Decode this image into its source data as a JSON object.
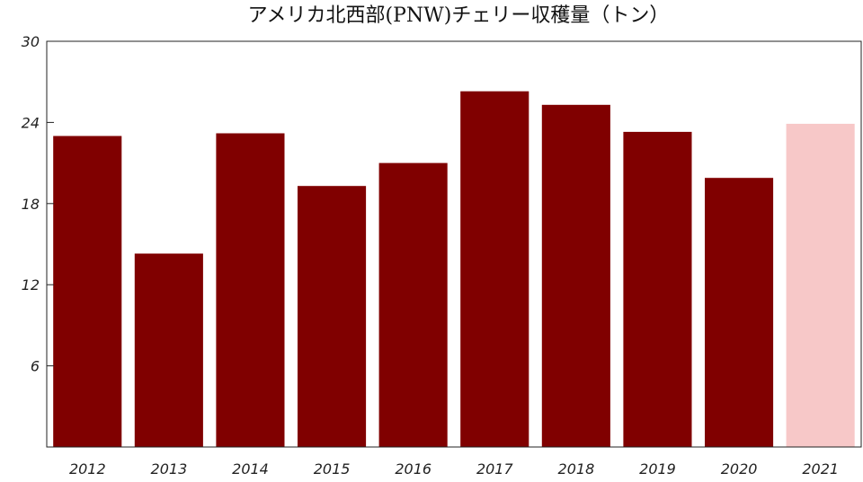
{
  "chart_data": {
    "type": "bar",
    "title": "アメリカ北西部(PNW)チェリー収穫量（トン）",
    "xlabel": "",
    "ylabel": "",
    "categories": [
      "2012",
      "2013",
      "2014",
      "2015",
      "2016",
      "2017",
      "2018",
      "2019",
      "2020",
      "2021"
    ],
    "values": [
      23.0,
      14.3,
      23.2,
      19.3,
      21.0,
      26.3,
      25.3,
      23.3,
      19.9,
      23.9
    ],
    "ylim": [
      0,
      30
    ],
    "yticks": [
      6,
      12,
      18,
      24,
      30
    ],
    "grid": false,
    "colors": {
      "bar": "#800000",
      "highlight": "#f7c8c8",
      "axis": "#222222"
    },
    "highlight_index": 9
  }
}
